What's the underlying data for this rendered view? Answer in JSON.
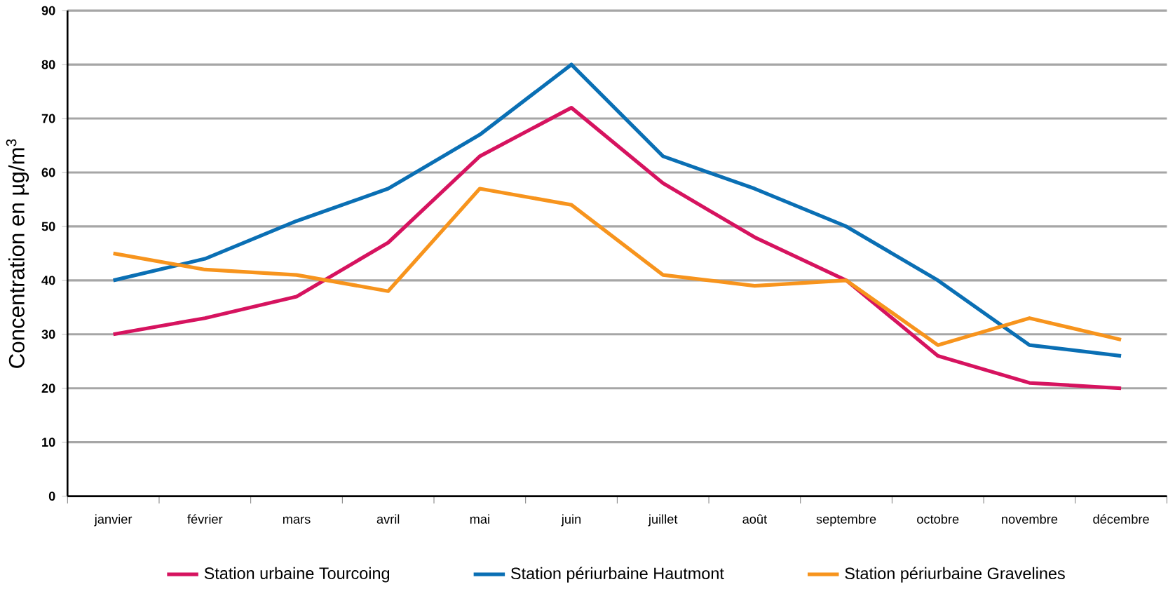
{
  "chart_data": {
    "type": "line",
    "ylabel": "Concentration en µg/m$^{3}$",
    "categories": [
      "janvier",
      "février",
      "mars",
      "avril",
      "mai",
      "juin",
      "juillet",
      "août",
      "septembre",
      "octobre",
      "novembre",
      "décembre"
    ],
    "series": [
      {
        "name": "Station urbaine Tourcoing",
        "color": "#d6135f",
        "values": [
          30,
          33,
          37,
          47,
          63,
          72,
          58,
          48,
          40,
          26,
          21,
          20
        ]
      },
      {
        "name": "Station périurbaine Hautmont",
        "color": "#0a6fb4",
        "values": [
          40,
          44,
          51,
          57,
          67,
          80,
          63,
          57,
          50,
          40,
          28,
          26
        ]
      },
      {
        "name": "Station périurbaine Gravelines",
        "color": "#f7941d",
        "values": [
          45,
          42,
          41,
          38,
          57,
          54,
          41,
          39,
          40,
          28,
          33,
          29
        ]
      }
    ],
    "ylim": [
      0,
      90
    ],
    "yticks": [
      0,
      10,
      20,
      30,
      40,
      50,
      60,
      70,
      80,
      90
    ],
    "grid": "y",
    "legend": "bottom",
    "marker": "none",
    "line_style": "solid"
  }
}
